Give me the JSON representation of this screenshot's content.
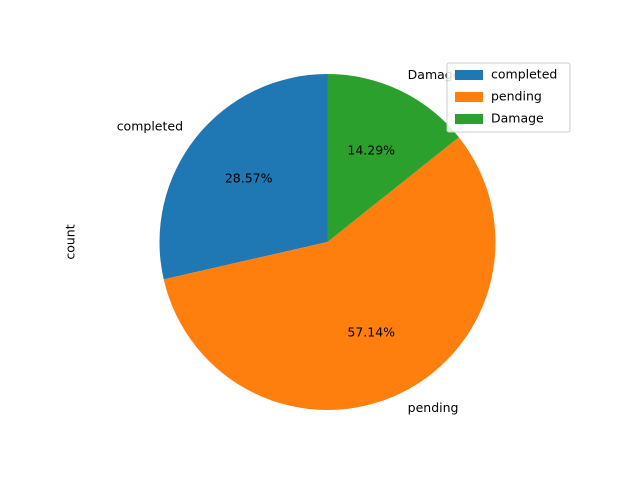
{
  "chart_data": {
    "type": "pie",
    "title": "",
    "ylabel": "count",
    "labels": [
      "completed",
      "pending",
      "Damage"
    ],
    "values": [
      2,
      4,
      1
    ],
    "percent_labels": [
      "28.57%",
      "57.14%",
      "14.29%"
    ],
    "colors": [
      "#1f77b4",
      "#ff7f0e",
      "#2ca02c"
    ],
    "start_angle_deg": 90,
    "direction": "counterclockwise",
    "legend": {
      "placement": "upper right",
      "entries": [
        "completed",
        "pending",
        "Damage"
      ]
    }
  }
}
